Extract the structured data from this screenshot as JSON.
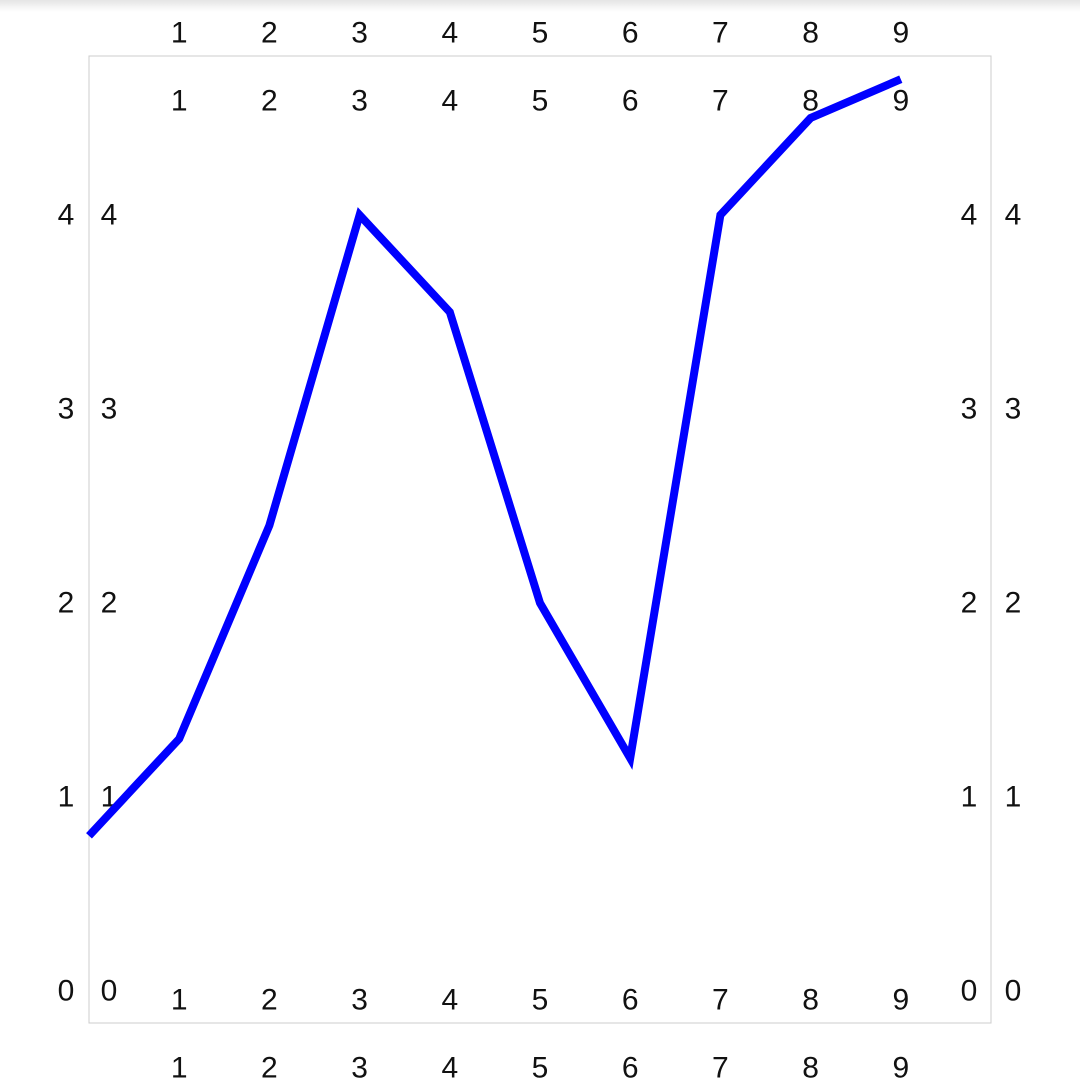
{
  "chart_data": {
    "type": "line",
    "title": "",
    "xlabel": "",
    "ylabel": "",
    "xlim": [
      0,
      10
    ],
    "ylim": [
      0,
      5
    ],
    "grid": false,
    "x": [
      0,
      1,
      2,
      3,
      4,
      5,
      6,
      7,
      8,
      9
    ],
    "y_ticks": [
      0,
      1,
      2,
      3,
      4
    ],
    "x_ticks": [
      1,
      2,
      3,
      4,
      5,
      6,
      7,
      8,
      9
    ],
    "series": [
      {
        "values": [
          0.8,
          1.3,
          2.4,
          4.0,
          3.5,
          2.0,
          1.2,
          4.0,
          4.5,
          4.7
        ]
      }
    ],
    "colors": {
      "line": "#0000ff",
      "frame": "#cccccc",
      "text": "#111111"
    }
  }
}
